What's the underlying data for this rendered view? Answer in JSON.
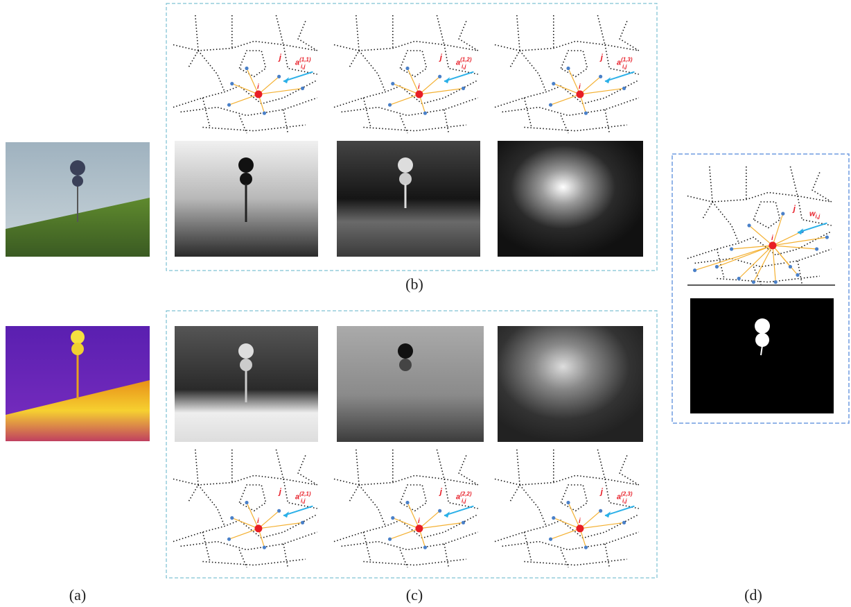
{
  "panel_labels": {
    "a": "(a)",
    "b": "(b)",
    "c": "(c)",
    "d": "(d)"
  },
  "graphs": [
    {
      "node_i": "i",
      "node_j": "j",
      "weight": "a",
      "sub": "i,j",
      "sup": "(1,1)"
    },
    {
      "node_i": "i",
      "node_j": "j",
      "weight": "a",
      "sub": "i,j",
      "sup": "(1,2)"
    },
    {
      "node_i": "i",
      "node_j": "j",
      "weight": "a",
      "sub": "i,j",
      "sup": "(1,3)"
    },
    {
      "node_i": "i",
      "node_j": "j",
      "weight": "a",
      "sub": "i,j",
      "sup": "(2,1)"
    },
    {
      "node_i": "i",
      "node_j": "j",
      "weight": "a",
      "sub": "i,j",
      "sup": "(2,2)"
    },
    {
      "node_i": "i",
      "node_j": "j",
      "weight": "a",
      "sub": "i,j",
      "sup": "(2,3)"
    }
  ],
  "graph_d": {
    "node_i": "i",
    "node_j": "j",
    "weight": "w",
    "sub": "i,j"
  }
}
